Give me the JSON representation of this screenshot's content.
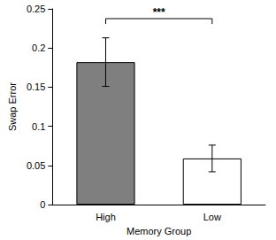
{
  "chart_data": {
    "type": "bar",
    "x_label": "Memory Group",
    "y_label": "Swap Error",
    "categories": [
      "High",
      "Low"
    ],
    "values": [
      0.182,
      0.059
    ],
    "errors": [
      0.031,
      0.017
    ],
    "colors": [
      "#7f7f7f",
      "#ffffff"
    ],
    "ylim": [
      0,
      0.25
    ],
    "yticks": [
      0,
      0.05,
      0.1,
      0.15,
      0.2,
      0.25
    ],
    "annotation": "***",
    "grid": false
  }
}
